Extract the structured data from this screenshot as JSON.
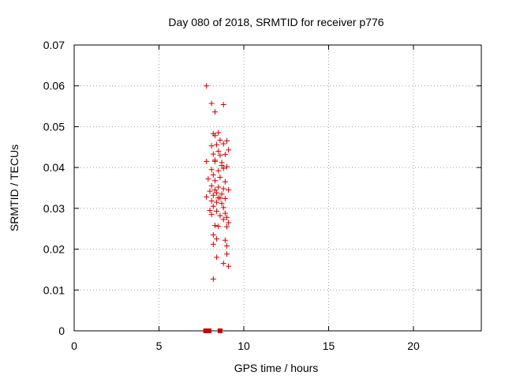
{
  "chart_data": {
    "type": "scatter",
    "title": "Day 080 of 2018, SRMTID for receiver p776",
    "xlabel": "GPS time / hours",
    "ylabel": "SRMTID / TECUs",
    "xlim": [
      0,
      24
    ],
    "ylim": [
      0,
      0.07
    ],
    "xticks": [
      0,
      5,
      10,
      15,
      20
    ],
    "xtick_labels": [
      "0",
      "5",
      "10",
      "15",
      "20"
    ],
    "yticks": [
      0,
      0.01,
      0.02,
      0.03,
      0.04,
      0.05,
      0.06,
      0.07
    ],
    "ytick_labels": [
      "0",
      "0.01",
      "0.02",
      "0.03",
      "0.04",
      "0.05",
      "0.06",
      "0.07"
    ],
    "grid": true,
    "marker_color": "#cc0000",
    "series": [
      {
        "name": "SRMTID",
        "marker": "plus",
        "points": [
          [
            7.8,
            0.06
          ],
          [
            8.1,
            0.0557
          ],
          [
            8.3,
            0.0536
          ],
          [
            8.8,
            0.0554
          ],
          [
            8.2,
            0.0483
          ],
          [
            8.5,
            0.0485
          ],
          [
            8.3,
            0.0478
          ],
          [
            8.6,
            0.0467
          ],
          [
            9.0,
            0.0465
          ],
          [
            8.1,
            0.0453
          ],
          [
            8.4,
            0.0456
          ],
          [
            8.8,
            0.0458
          ],
          [
            9.1,
            0.0443
          ],
          [
            8.2,
            0.0433
          ],
          [
            8.6,
            0.043
          ],
          [
            8.9,
            0.0432
          ],
          [
            7.8,
            0.0415
          ],
          [
            8.3,
            0.0418
          ],
          [
            8.7,
            0.0412
          ],
          [
            9.0,
            0.0402
          ],
          [
            8.1,
            0.0395
          ],
          [
            8.5,
            0.0392
          ],
          [
            8.8,
            0.0398
          ],
          [
            8.2,
            0.0382
          ],
          [
            8.6,
            0.0376
          ],
          [
            7.9,
            0.0372
          ],
          [
            8.3,
            0.0368
          ],
          [
            8.9,
            0.0365
          ],
          [
            8.1,
            0.0355
          ],
          [
            8.5,
            0.0352
          ],
          [
            8.8,
            0.0348
          ],
          [
            9.1,
            0.0345
          ],
          [
            8.0,
            0.0342
          ],
          [
            8.4,
            0.0338
          ],
          [
            8.7,
            0.0335
          ],
          [
            8.2,
            0.0332
          ],
          [
            7.8,
            0.0328
          ],
          [
            8.5,
            0.0326
          ],
          [
            8.9,
            0.0324
          ],
          [
            8.1,
            0.0318
          ],
          [
            8.4,
            0.0315
          ],
          [
            8.7,
            0.0312
          ],
          [
            8.2,
            0.0305
          ],
          [
            8.8,
            0.0302
          ],
          [
            8.0,
            0.0295
          ],
          [
            8.4,
            0.0293
          ],
          [
            8.9,
            0.0288
          ],
          [
            8.1,
            0.0285
          ],
          [
            8.6,
            0.0282
          ],
          [
            9.0,
            0.0278
          ],
          [
            8.8,
            0.0273
          ],
          [
            9.1,
            0.0265
          ],
          [
            8.3,
            0.0258
          ],
          [
            8.5,
            0.0256
          ],
          [
            9.0,
            0.0255
          ],
          [
            8.2,
            0.0235
          ],
          [
            8.4,
            0.0225
          ],
          [
            8.9,
            0.0222
          ],
          [
            8.2,
            0.0212
          ],
          [
            9.0,
            0.0208
          ],
          [
            8.4,
            0.018
          ],
          [
            9.0,
            0.0188
          ],
          [
            8.8,
            0.0165
          ],
          [
            9.1,
            0.0158
          ],
          [
            8.2,
            0.0127
          ],
          [
            8.3,
            0.0415
          ],
          [
            8.5,
            0.044
          ],
          [
            8.7,
            0.0405
          ],
          [
            8.6,
            0.0325
          ],
          [
            8.3,
            0.0345
          ]
        ]
      }
    ],
    "baseline_markers": [
      7.75,
      7.85,
      7.95,
      8.6
    ]
  }
}
